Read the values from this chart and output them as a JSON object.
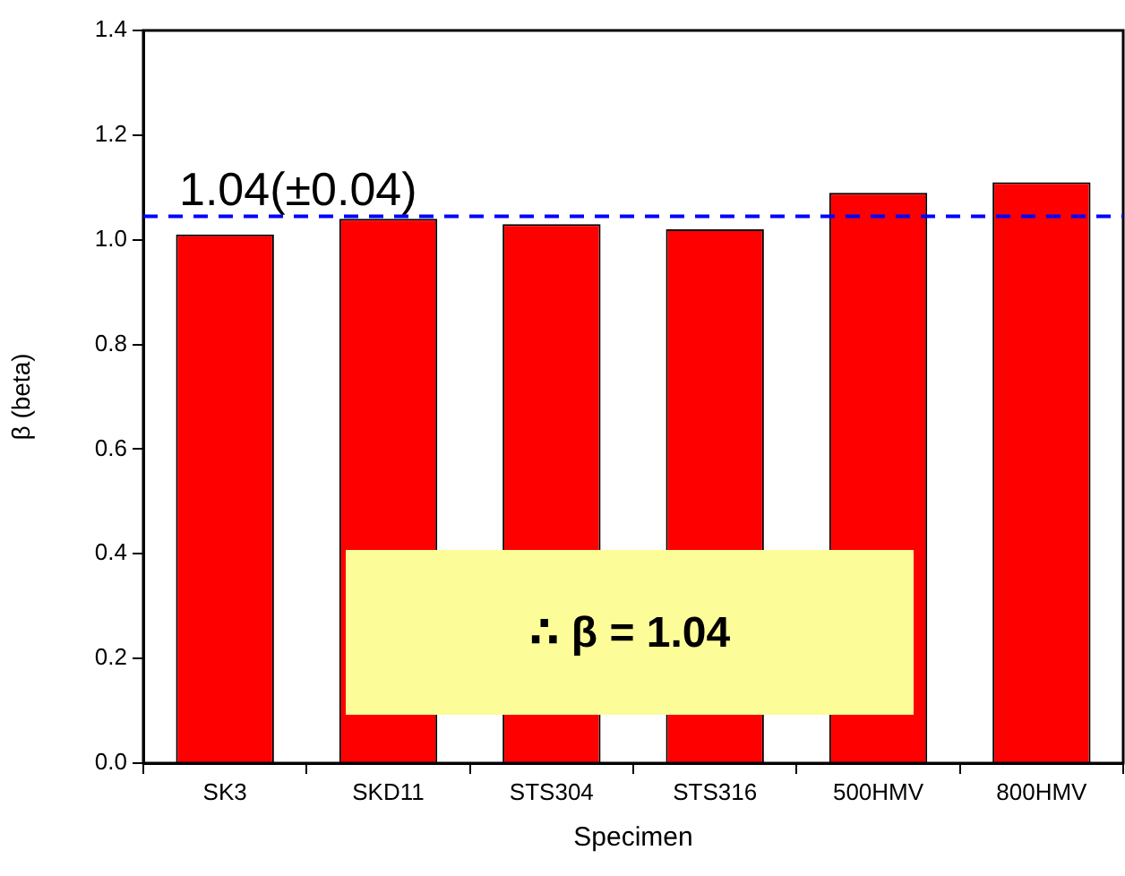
{
  "chart_data": {
    "type": "bar",
    "xlabel": "Specimen",
    "ylabel": "β (beta)",
    "categories": [
      "SK3",
      "SKD11",
      "STS304",
      "STS316",
      "500HMV",
      "800HMV"
    ],
    "values": [
      1.01,
      1.04,
      1.03,
      1.02,
      1.09,
      1.11
    ],
    "color": "#ff0000",
    "ylim": [
      0,
      1.4
    ],
    "yticks": [
      {
        "value": 0,
        "label": "0.0"
      },
      0.2,
      0.4,
      0.6,
      0.8,
      {
        "value": 1,
        "label": "1.0"
      },
      1.2,
      1.4
    ],
    "grid": false,
    "legend": false,
    "ref_lines": [
      {
        "axis": "y",
        "value": 1.045,
        "label": "1.04(±0.04)",
        "color": "#0000ff",
        "line_style": "dashed"
      }
    ],
    "annotations": [
      "∴ β = 1.04"
    ]
  }
}
